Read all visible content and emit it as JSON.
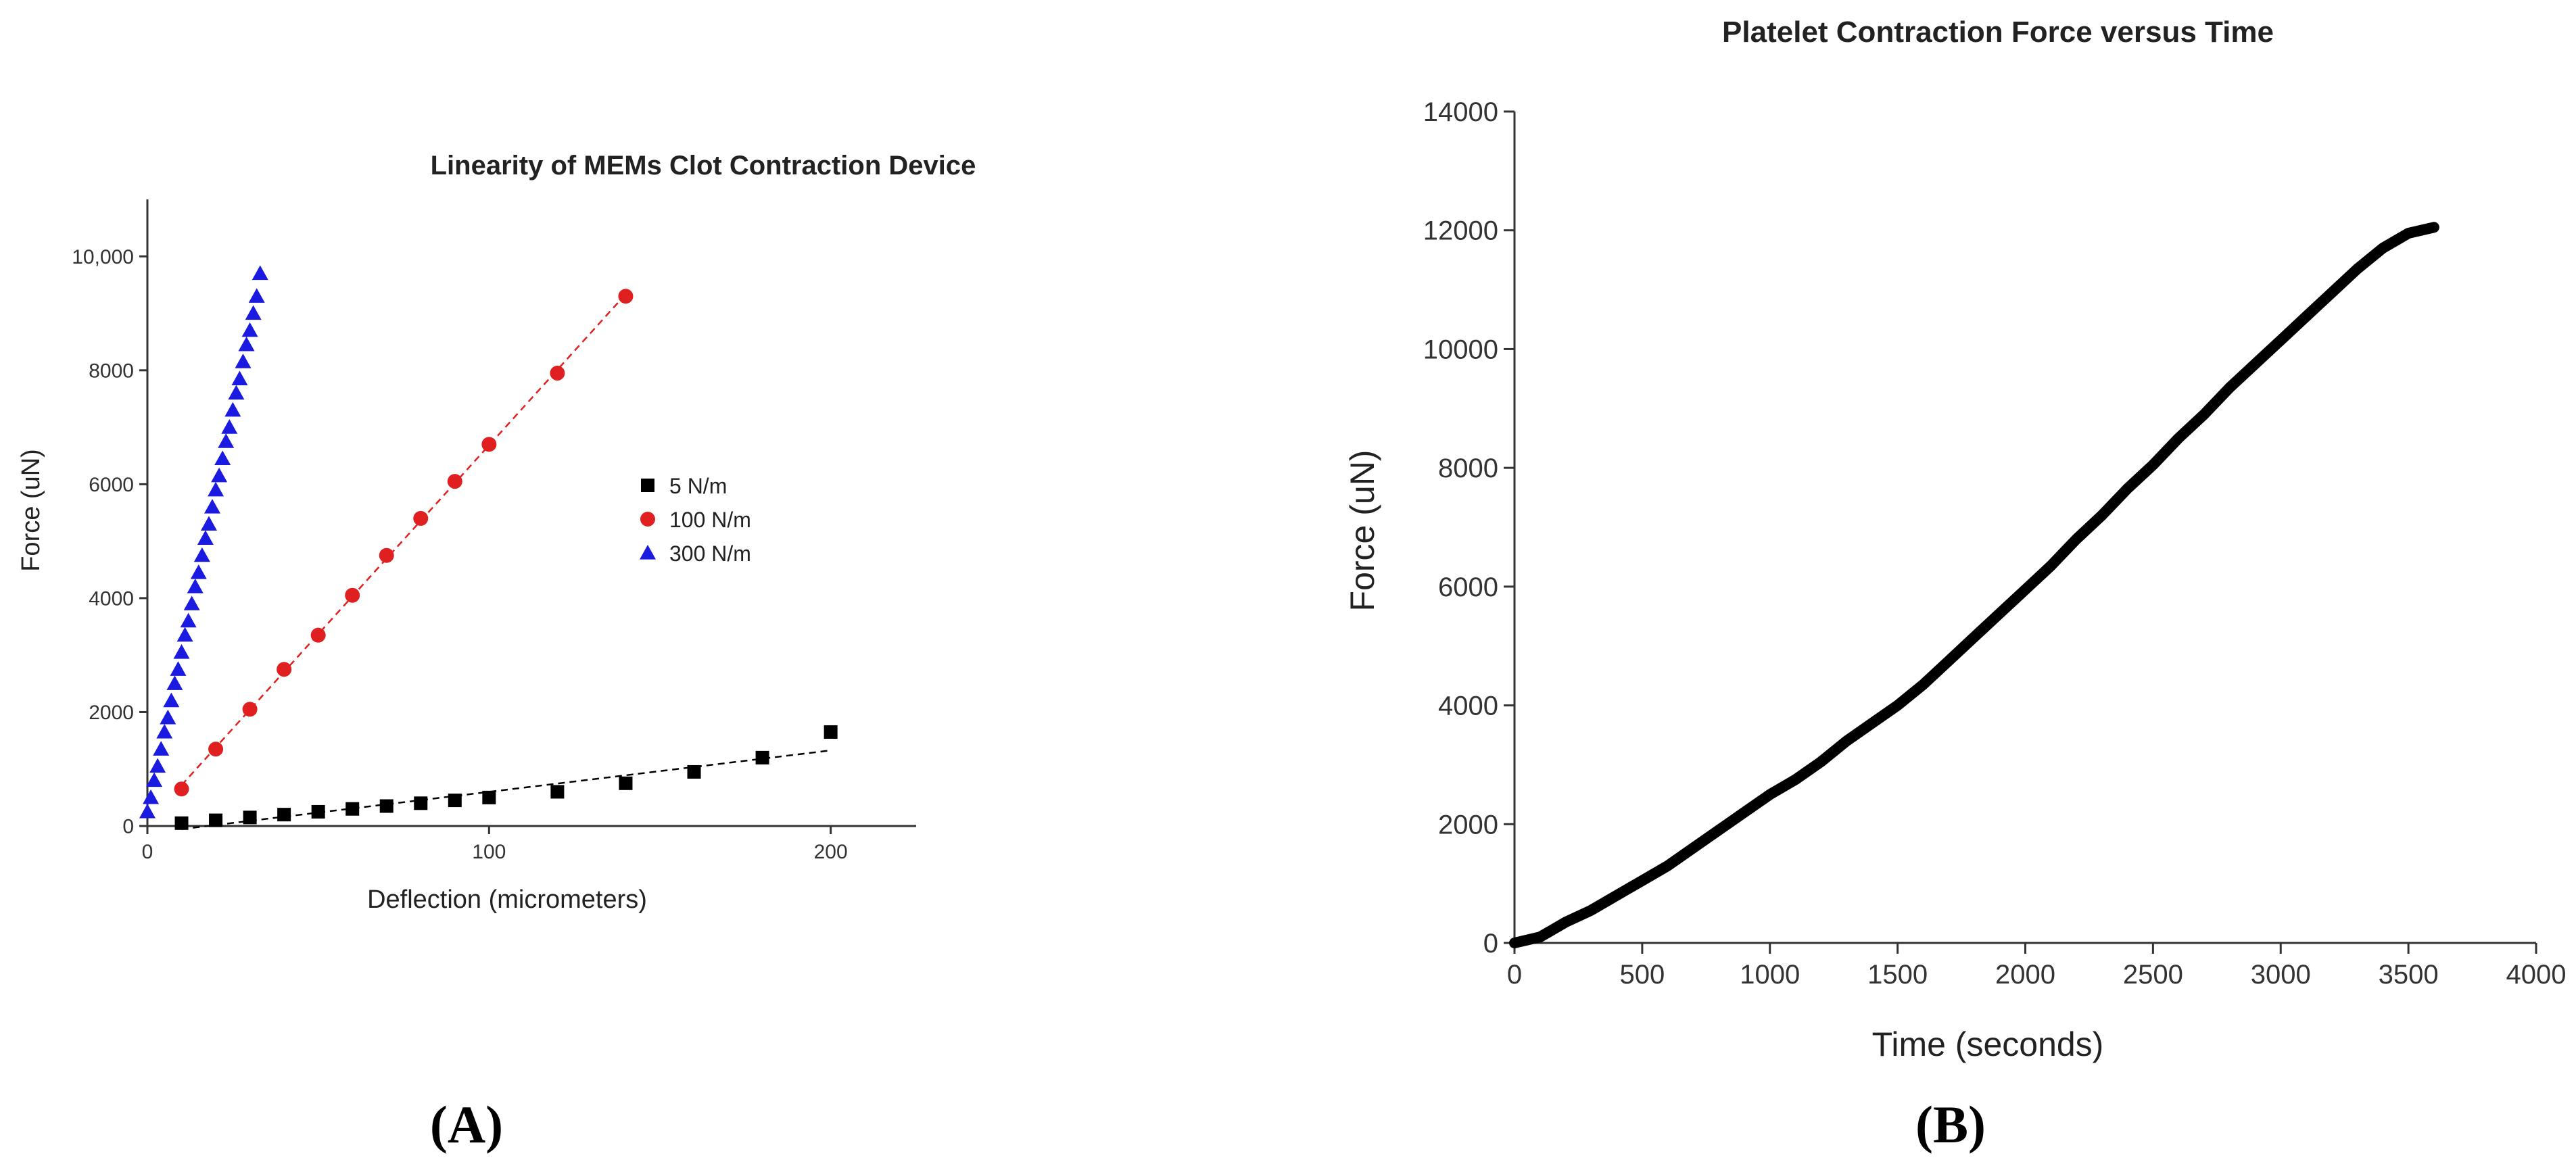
{
  "panels": [
    {
      "label": "(A)",
      "chart_data": {
        "type": "scatter",
        "title": "Linearity of MEMs Clot Contraction Device",
        "xlabel": "Deflection (micrometers)",
        "ylabel": "Force (uN)",
        "xlim": [
          0,
          225
        ],
        "ylim": [
          0,
          11000
        ],
        "x_ticks": [
          0,
          100,
          200
        ],
        "x_tick_labels": [
          "0",
          "100",
          "200"
        ],
        "y_ticks": [
          0,
          2000,
          4000,
          6000,
          8000,
          10000
        ],
        "y_tick_labels": [
          "0",
          "2000",
          "4000",
          "6000",
          "8000",
          "10,000"
        ],
        "legend_position": "right",
        "grid": false,
        "series": [
          {
            "name": "5 N/m",
            "marker": "square",
            "color": "#000000",
            "fit_line": true,
            "x": [
              10,
              20,
              30,
              40,
              50,
              60,
              70,
              80,
              90,
              100,
              120,
              140,
              160,
              180,
              200
            ],
            "y": [
              50,
              100,
              150,
              200,
              250,
              300,
              350,
              400,
              450,
              500,
              600,
              750,
              950,
              1200,
              1650
            ]
          },
          {
            "name": "100 N/m",
            "marker": "circle",
            "color": "#e02020",
            "fit_line": true,
            "x": [
              10,
              20,
              30,
              40,
              50,
              60,
              70,
              80,
              90,
              100,
              120,
              140
            ],
            "y": [
              650,
              1350,
              2050,
              2750,
              3350,
              4050,
              4750,
              5400,
              6050,
              6700,
              7950,
              9300
            ]
          },
          {
            "name": "300 N/m",
            "marker": "triangle",
            "color": "#1a1ae0",
            "fit_line": false,
            "x": [
              0,
              1,
              2,
              3,
              4,
              5,
              6,
              7,
              8,
              9,
              10,
              11,
              12,
              13,
              14,
              15,
              16,
              17,
              18,
              19,
              20,
              21,
              22,
              23,
              24,
              25,
              26,
              27,
              28,
              29,
              30,
              31,
              32,
              33
            ],
            "y": [
              250,
              500,
              800,
              1050,
              1350,
              1650,
              1900,
              2200,
              2500,
              2750,
              3050,
              3350,
              3600,
              3900,
              4200,
              4450,
              4750,
              5050,
              5300,
              5600,
              5900,
              6150,
              6450,
              6750,
              7000,
              7300,
              7600,
              7850,
              8150,
              8450,
              8700,
              9000,
              9300,
              9700
            ]
          }
        ]
      }
    },
    {
      "label": "(B)",
      "chart_data": {
        "type": "line",
        "title": "Platelet Contraction Force versus Time",
        "xlabel": "Time (seconds)",
        "ylabel": "Force (uN)",
        "xlim": [
          0,
          4000
        ],
        "ylim": [
          0,
          14000
        ],
        "x_ticks": [
          0,
          500,
          1000,
          1500,
          2000,
          2500,
          3000,
          3500,
          4000
        ],
        "x_tick_labels": [
          "0",
          "500",
          "1000",
          "1500",
          "2000",
          "2500",
          "3000",
          "3500",
          "4000"
        ],
        "y_ticks": [
          0,
          2000,
          4000,
          6000,
          8000,
          10000,
          12000,
          14000
        ],
        "y_tick_labels": [
          "0",
          "2000",
          "4000",
          "6000",
          "8000",
          "10000",
          "12000",
          "14000"
        ],
        "grid": false,
        "series": [
          {
            "color": "#000000",
            "x": [
              0,
              100,
              200,
              300,
              400,
              500,
              600,
              700,
              800,
              900,
              1000,
              1100,
              1200,
              1300,
              1400,
              1500,
              1600,
              1700,
              1800,
              1900,
              2000,
              2100,
              2200,
              2300,
              2400,
              2500,
              2600,
              2700,
              2800,
              2900,
              3000,
              3100,
              3200,
              3300,
              3400,
              3500,
              3600
            ],
            "y": [
              0,
              100,
              350,
              550,
              800,
              1050,
              1300,
              1600,
              1900,
              2200,
              2500,
              2750,
              3050,
              3400,
              3700,
              4000,
              4350,
              4750,
              5150,
              5550,
              5950,
              6350,
              6800,
              7200,
              7650,
              8050,
              8500,
              8900,
              9350,
              9750,
              10150,
              10550,
              10950,
              11350,
              11700,
              11950,
              12050
            ]
          }
        ]
      }
    }
  ]
}
